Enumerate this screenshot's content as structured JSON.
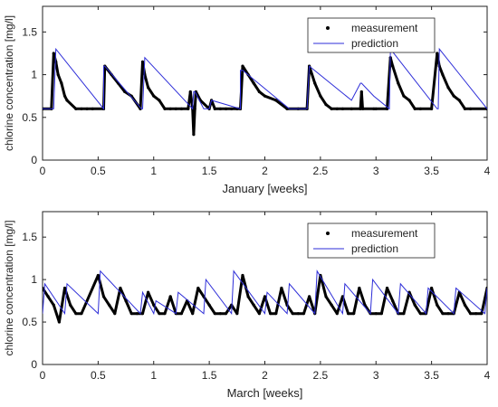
{
  "chart_data": [
    {
      "type": "line",
      "title": "",
      "xlabel": "January [weeks]",
      "ylabel": "chlorine concentration [mg/l]",
      "xlim": [
        0,
        4
      ],
      "ylim": [
        0,
        1.8
      ],
      "xticks": [
        "0",
        "0.5",
        "1",
        "1.5",
        "2",
        "2.5",
        "3",
        "3.5",
        "4"
      ],
      "yticks": [
        "0",
        "0.5",
        "1",
        "1.5"
      ],
      "legend": {
        "position": "top-right",
        "entries": [
          "measurement",
          "prediction"
        ]
      },
      "series": [
        {
          "name": "measurement",
          "color": "#000000",
          "style": "dots",
          "x": [
            0,
            0.08,
            0.1,
            0.12,
            0.14,
            0.17,
            0.2,
            0.22,
            0.3,
            0.35,
            0.4,
            0.45,
            0.55,
            0.56,
            0.62,
            0.68,
            0.74,
            0.8,
            0.88,
            0.9,
            0.92,
            0.95,
            1.0,
            1.05,
            1.1,
            1.15,
            1.2,
            1.25,
            1.31,
            1.33,
            1.35,
            1.36,
            1.37,
            1.38,
            1.42,
            1.5,
            1.52,
            1.55,
            1.6,
            1.65,
            1.7,
            1.75,
            1.78,
            1.8,
            1.85,
            1.9,
            1.95,
            2.0,
            2.1,
            2.2,
            2.3,
            2.38,
            2.4,
            2.45,
            2.5,
            2.55,
            2.6,
            2.65,
            2.7,
            2.78,
            2.86,
            2.87,
            2.88,
            2.98,
            3.0,
            3.1,
            3.13,
            3.15,
            3.2,
            3.25,
            3.3,
            3.35,
            3.4,
            3.5,
            3.55,
            3.57,
            3.6,
            3.65,
            3.7,
            3.75,
            3.8,
            3.85,
            4.0
          ],
          "y": [
            0.6,
            0.6,
            1.25,
            1.15,
            1.0,
            0.9,
            0.75,
            0.7,
            0.6,
            0.6,
            0.6,
            0.6,
            0.6,
            1.1,
            1.0,
            0.9,
            0.8,
            0.75,
            0.6,
            1.15,
            1.0,
            0.85,
            0.75,
            0.7,
            0.6,
            0.6,
            0.6,
            0.6,
            0.6,
            0.8,
            0.6,
            0.3,
            0.6,
            0.8,
            0.7,
            0.6,
            0.7,
            0.6,
            0.6,
            0.6,
            0.6,
            0.6,
            0.6,
            1.1,
            1.0,
            0.9,
            0.8,
            0.75,
            0.7,
            0.6,
            0.6,
            0.6,
            1.1,
            0.9,
            0.75,
            0.65,
            0.6,
            0.6,
            0.6,
            0.6,
            0.6,
            0.8,
            0.6,
            0.6,
            0.6,
            0.6,
            1.2,
            1.1,
            0.9,
            0.75,
            0.7,
            0.6,
            0.6,
            0.6,
            1.25,
            1.1,
            1.0,
            0.85,
            0.75,
            0.7,
            0.6,
            0.6,
            0.6
          ]
        },
        {
          "name": "prediction",
          "color": "#2d2dd8",
          "style": "line",
          "x": [
            0,
            0.1,
            0.12,
            0.55,
            0.55,
            0.56,
            0.89,
            0.9,
            0.92,
            1.35,
            1.36,
            1.37,
            1.45,
            1.5,
            1.52,
            1.78,
            1.78,
            1.8,
            2.22,
            2.38,
            2.4,
            2.78,
            2.86,
            2.87,
            2.98,
            3.12,
            3.13,
            3.55,
            3.56,
            3.57,
            4.0
          ],
          "y": [
            0.6,
            0.6,
            1.3,
            0.6,
            1.1,
            1.1,
            0.6,
            0.6,
            1.2,
            0.6,
            0.8,
            0.8,
            0.6,
            0.6,
            0.7,
            0.6,
            1.05,
            1.05,
            0.6,
            0.6,
            1.1,
            0.7,
            0.9,
            0.9,
            0.75,
            0.6,
            1.3,
            0.6,
            0.6,
            1.3,
            0.6
          ]
        }
      ]
    },
    {
      "type": "line",
      "title": "",
      "xlabel": "March [weeks]",
      "ylabel": "chlorine concentration [mg/l]",
      "xlim": [
        0,
        4
      ],
      "ylim": [
        0,
        1.8
      ],
      "xticks": [
        "0",
        "0.5",
        "1",
        "1.5",
        "2",
        "2.5",
        "3",
        "3.5",
        "4"
      ],
      "yticks": [
        "0",
        "0.5",
        "1",
        "1.5"
      ],
      "legend": {
        "position": "top-right",
        "entries": [
          "measurement",
          "prediction"
        ]
      },
      "series": [
        {
          "name": "measurement",
          "color": "#000000",
          "style": "dots",
          "x": [
            0,
            0.05,
            0.1,
            0.15,
            0.2,
            0.25,
            0.3,
            0.35,
            0.5,
            0.55,
            0.6,
            0.65,
            0.7,
            0.75,
            0.8,
            0.85,
            0.9,
            0.95,
            1.0,
            1.05,
            1.1,
            1.15,
            1.2,
            1.25,
            1.3,
            1.35,
            1.4,
            1.45,
            1.5,
            1.55,
            1.6,
            1.65,
            1.7,
            1.75,
            1.8,
            1.85,
            1.9,
            1.95,
            2.0,
            2.05,
            2.1,
            2.15,
            2.2,
            2.25,
            2.3,
            2.35,
            2.4,
            2.45,
            2.5,
            2.55,
            2.6,
            2.65,
            2.7,
            2.75,
            2.8,
            2.85,
            2.9,
            2.95,
            3.0,
            3.05,
            3.1,
            3.15,
            3.2,
            3.25,
            3.3,
            3.35,
            3.4,
            3.45,
            3.5,
            3.55,
            3.6,
            3.65,
            3.7,
            3.75,
            3.8,
            3.85,
            3.9,
            3.95,
            4.0
          ],
          "y": [
            0.9,
            0.8,
            0.7,
            0.5,
            0.9,
            0.7,
            0.6,
            0.6,
            1.05,
            0.8,
            0.7,
            0.6,
            0.9,
            0.75,
            0.6,
            0.6,
            0.6,
            0.85,
            0.7,
            0.6,
            0.6,
            0.8,
            0.6,
            0.6,
            0.75,
            0.6,
            0.9,
            0.8,
            0.7,
            0.6,
            0.6,
            0.6,
            0.7,
            0.6,
            1.05,
            0.8,
            0.7,
            0.6,
            0.8,
            0.6,
            0.6,
            0.9,
            0.7,
            0.6,
            0.6,
            0.6,
            0.8,
            0.6,
            1.05,
            0.8,
            0.7,
            0.6,
            0.8,
            0.6,
            0.6,
            0.9,
            0.7,
            0.6,
            0.6,
            0.6,
            0.9,
            0.75,
            0.6,
            0.6,
            0.85,
            0.7,
            0.6,
            0.6,
            0.9,
            0.7,
            0.6,
            0.6,
            0.6,
            0.85,
            0.7,
            0.6,
            0.6,
            0.6,
            0.9
          ]
        },
        {
          "name": "prediction",
          "color": "#2d2dd8",
          "style": "line",
          "x": [
            0,
            0.02,
            0.2,
            0.22,
            0.5,
            0.52,
            0.88,
            0.9,
            1.0,
            1.02,
            1.2,
            1.22,
            1.45,
            1.47,
            1.7,
            1.72,
            2.0,
            2.02,
            2.2,
            2.22,
            2.45,
            2.47,
            2.7,
            2.72,
            2.95,
            2.97,
            3.2,
            3.22,
            3.45,
            3.47,
            3.7,
            3.72,
            3.98,
            4.0
          ],
          "y": [
            0.6,
            0.95,
            0.6,
            0.95,
            0.6,
            1.1,
            0.6,
            0.85,
            0.6,
            0.75,
            0.6,
            0.85,
            0.6,
            1.0,
            0.6,
            1.1,
            0.6,
            0.85,
            0.6,
            0.95,
            0.6,
            1.1,
            0.6,
            0.95,
            0.6,
            1.0,
            0.6,
            0.95,
            0.6,
            0.9,
            0.6,
            0.9,
            0.6,
            0.9
          ]
        }
      ]
    }
  ]
}
